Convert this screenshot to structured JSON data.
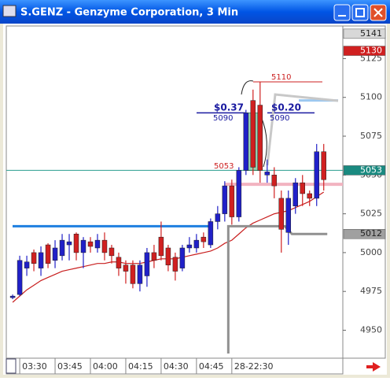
{
  "chart_data": {
    "type": "candlestick",
    "title": "S.GENZ - Genzyme Corporation, 3 Min",
    "open": [
      4971,
      4973,
      4990,
      5000,
      4990,
      5005,
      4995,
      4998,
      5005,
      5012,
      5000,
      5007,
      5003,
      5008,
      5003,
      4997,
      4992,
      4992,
      4980,
      4985,
      5000,
      5010,
      5003,
      4997,
      4990,
      5003,
      5003,
      5010,
      5005,
      5020,
      5025,
      5043,
      5023,
      5053,
      5098,
      5095,
      5050,
      5050,
      5035,
      5013,
      5030,
      5045,
      5038,
      5035,
      5065
    ],
    "high": [
      4973,
      4998,
      4998,
      5002,
      5004,
      5006,
      5008,
      5012,
      5012,
      5013,
      5010,
      5010,
      5012,
      5013,
      5005,
      5000,
      4995,
      4995,
      4995,
      5003,
      5005,
      5020,
      5005,
      5000,
      5005,
      5010,
      5012,
      5013,
      5022,
      5030,
      5046,
      5047,
      5055,
      5092,
      5105,
      5110,
      5060,
      5055,
      5040,
      5040,
      5048,
      5050,
      5040,
      5070,
      5070
    ],
    "low": [
      4970,
      4972,
      4985,
      4988,
      4985,
      4990,
      4990,
      4995,
      4995,
      4995,
      4990,
      5000,
      5000,
      4995,
      4993,
      4985,
      4980,
      4977,
      4975,
      4978,
      4990,
      4995,
      4988,
      4982,
      4988,
      5000,
      5000,
      5003,
      5003,
      5015,
      5020,
      5018,
      5020,
      5050,
      5050,
      5045,
      5045,
      5035,
      5000,
      5005,
      5025,
      5030,
      5030,
      5030,
      5040
    ],
    "close": [
      4972,
      4995,
      4994,
      4993,
      5000,
      4993,
      5003,
      5008,
      5007,
      5000,
      5008,
      5004,
      5008,
      5000,
      4998,
      4990,
      4988,
      4980,
      4992,
      5000,
      4995,
      4998,
      4992,
      4988,
      5003,
      5005,
      5008,
      5007,
      5020,
      5025,
      5043,
      5023,
      5053,
      5090,
      5055,
      5053,
      5052,
      5043,
      5015,
      5035,
      5045,
      5038,
      5035,
      5065,
      5047
    ],
    "up_color": "#2020c8",
    "down_color": "#d02020",
    "xlim": [
      -0.9,
      46.7
    ],
    "xticks": [
      {
        "value": 1,
        "label": "03:30"
      },
      {
        "value": 6,
        "label": "03:45"
      },
      {
        "value": 11,
        "label": "04:00"
      },
      {
        "value": 16,
        "label": "04:15"
      },
      {
        "value": 21,
        "label": "04:30"
      },
      {
        "value": 26,
        "label": "04:45"
      },
      {
        "value": 31,
        "label": "28-22:30"
      }
    ],
    "ylim": [
      4932,
      5146
    ],
    "yticks": [
      4950,
      4975,
      5000,
      5025,
      5050,
      5075,
      5100,
      5125
    ],
    "moving_average": {
      "color": "#c81e1e",
      "values": [
        4968,
        4972,
        4976,
        4979,
        4982,
        4984,
        4986,
        4988,
        4989,
        4990,
        4991,
        4992,
        4993,
        4993,
        4994,
        4994,
        4993,
        4993,
        4993,
        4994,
        4995,
        4996,
        4996,
        4996,
        4997,
        4998,
        4999,
        5000,
        5001,
        5003,
        5006,
        5008,
        5012,
        5016,
        5019,
        5021,
        5023,
        5025,
        5026,
        5027,
        5029,
        5031,
        5033,
        5036,
        5039
      ]
    },
    "stop_line": {
      "color": "#909090",
      "x": [
        30.5,
        30.5,
        38.5,
        39.5,
        44.5
      ],
      "values": [
        4935,
        5017,
        5017,
        5012,
        5012
      ]
    },
    "levels": [
      {
        "value": 5017,
        "color": "#1e7fe0"
      },
      {
        "value": 5053,
        "color": "#2a9d8f"
      },
      {
        "value": 5044,
        "color": "#f2b3c0"
      },
      {
        "value": 5110,
        "color": "#cc2222"
      },
      {
        "value": 5090,
        "color": "#1a1aa0"
      },
      {
        "value": 5090,
        "color": "#1a1aa0"
      },
      {
        "value": 5098,
        "color": "#9cc8f0"
      }
    ],
    "price_markers": [
      {
        "value": 5141,
        "color": "#d8d8d8"
      },
      {
        "value": 5130,
        "color": "#d02020"
      },
      {
        "value": 5053,
        "color": "#1a8a80"
      },
      {
        "value": 5012,
        "color": "#a0a0a0"
      }
    ],
    "annotations": [
      {
        "text": "$0.37",
        "color": "#1a1aa0"
      },
      {
        "text": "5090",
        "color": "#1a1aa0"
      },
      {
        "text": "$0.20",
        "color": "#1a1aa0"
      },
      {
        "text": "5090",
        "color": "#1a1aa0"
      },
      {
        "text": "5110",
        "color": "#cc2222"
      },
      {
        "text": "5053",
        "color": "#cc2222"
      }
    ]
  }
}
